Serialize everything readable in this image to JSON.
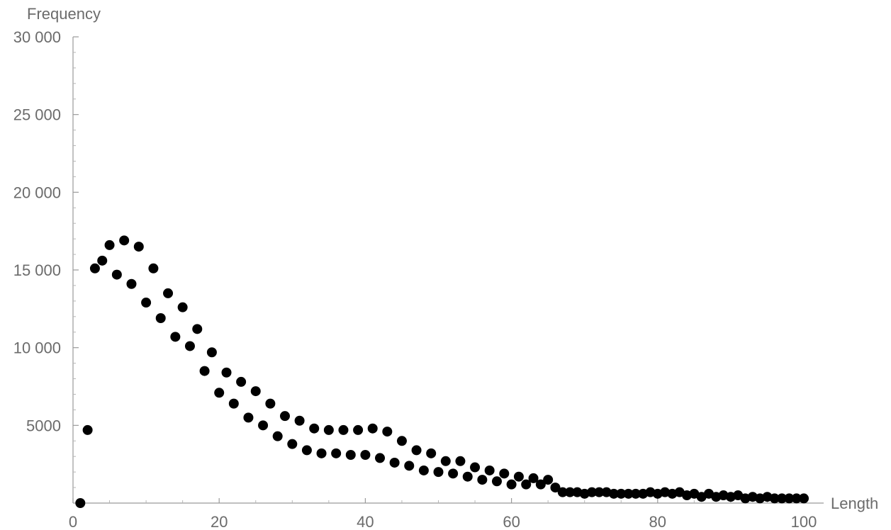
{
  "chart_data": {
    "type": "scatter",
    "title": "",
    "xlabel": "Length",
    "ylabel": "Frequency",
    "xlim": [
      0,
      100
    ],
    "ylim": [
      0,
      30000
    ],
    "x_ticks": [
      0,
      20,
      40,
      60,
      80,
      100
    ],
    "x_tick_labels": [
      "0",
      "20",
      "40",
      "60",
      "80",
      "100"
    ],
    "y_ticks": [
      5000,
      10000,
      15000,
      20000,
      25000,
      30000
    ],
    "y_tick_labels": [
      "5000",
      "10 000",
      "15 000",
      "20 000",
      "25 000",
      "30 000"
    ],
    "grid": false,
    "marker_color": "#000000",
    "axis_color": "#9a9a9a",
    "series": [
      {
        "x": [
          1,
          2,
          3,
          4,
          5,
          6,
          7,
          8,
          9,
          10,
          11,
          12,
          13,
          14,
          15,
          16,
          17,
          18,
          19,
          20,
          21,
          22,
          23,
          24,
          25,
          26,
          27,
          28,
          29,
          30,
          31,
          32,
          33,
          34,
          35,
          36,
          37,
          38,
          39,
          40,
          41,
          42,
          43,
          44,
          45,
          46,
          47,
          48,
          49,
          50,
          51,
          52,
          53,
          54,
          55,
          56,
          57,
          58,
          59,
          60,
          61,
          62,
          63,
          64,
          65,
          66,
          67,
          68,
          69,
          70,
          71,
          72,
          73,
          74,
          75,
          76,
          77,
          78,
          79,
          80,
          81,
          82,
          83,
          84,
          85,
          86,
          87,
          88,
          89,
          90,
          91,
          92,
          93,
          94,
          95,
          96,
          97,
          98,
          99,
          100
        ],
        "y": [
          0,
          4700,
          15100,
          15600,
          16600,
          14700,
          16900,
          14100,
          16500,
          12900,
          15100,
          11900,
          13500,
          10700,
          12600,
          10100,
          11200,
          8500,
          9700,
          7100,
          8400,
          6400,
          7800,
          5500,
          7200,
          5000,
          6400,
          4300,
          5600,
          3800,
          5300,
          3400,
          4800,
          3200,
          4700,
          3200,
          4700,
          3100,
          4700,
          3100,
          4800,
          2900,
          4600,
          2600,
          4000,
          2400,
          3400,
          2100,
          3200,
          2000,
          2700,
          1900,
          2700,
          1700,
          2300,
          1500,
          2100,
          1400,
          1900,
          1200,
          1700,
          1200,
          1600,
          1200,
          1500,
          1000,
          700,
          700,
          700,
          600,
          700,
          700,
          700,
          600,
          600,
          600,
          600,
          600,
          700,
          600,
          700,
          600,
          700,
          500,
          600,
          400,
          600,
          400,
          500,
          400,
          500,
          300,
          400,
          300,
          400,
          300,
          300,
          300,
          300,
          300
        ]
      }
    ]
  }
}
